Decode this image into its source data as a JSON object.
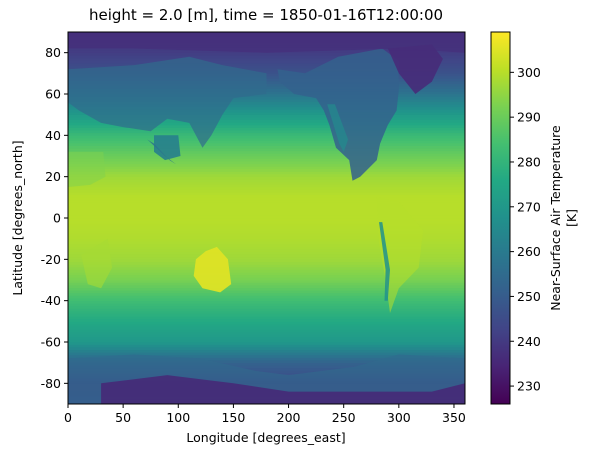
{
  "chart_data": {
    "type": "heatmap",
    "title": "height = 2.0 [m], time = 1850-01-16T12:00:00",
    "xlabel": "Longitude [degrees_east]",
    "ylabel": "Latitude [degrees_north]",
    "xlim": [
      0,
      360
    ],
    "ylim": [
      -90,
      90
    ],
    "x_ticks": [
      0,
      50,
      100,
      150,
      200,
      250,
      300,
      350
    ],
    "y_ticks": [
      -80,
      -60,
      -40,
      -20,
      0,
      20,
      40,
      60,
      80
    ],
    "colorbar": {
      "label_lines": [
        "Near-Surface Air Temperature",
        "[K]"
      ],
      "range": [
        226,
        309
      ],
      "ticks": [
        230,
        240,
        250,
        260,
        270,
        280,
        290,
        300
      ],
      "colormap": "viridis"
    },
    "grid": false,
    "latitude_profile_K": [
      {
        "lat": -90,
        "value": 245
      },
      {
        "lat": -80,
        "value": 244
      },
      {
        "lat": -70,
        "value": 252
      },
      {
        "lat": -60,
        "value": 270
      },
      {
        "lat": -50,
        "value": 276
      },
      {
        "lat": -40,
        "value": 283
      },
      {
        "lat": -30,
        "value": 292
      },
      {
        "lat": -20,
        "value": 297
      },
      {
        "lat": -10,
        "value": 299
      },
      {
        "lat": 0,
        "value": 300
      },
      {
        "lat": 10,
        "value": 300
      },
      {
        "lat": 20,
        "value": 297
      },
      {
        "lat": 30,
        "value": 290
      },
      {
        "lat": 40,
        "value": 282
      },
      {
        "lat": 50,
        "value": 271
      },
      {
        "lat": 60,
        "value": 258
      },
      {
        "lat": 70,
        "value": 247
      },
      {
        "lat": 80,
        "value": 241
      },
      {
        "lat": 90,
        "value": 238
      }
    ]
  }
}
